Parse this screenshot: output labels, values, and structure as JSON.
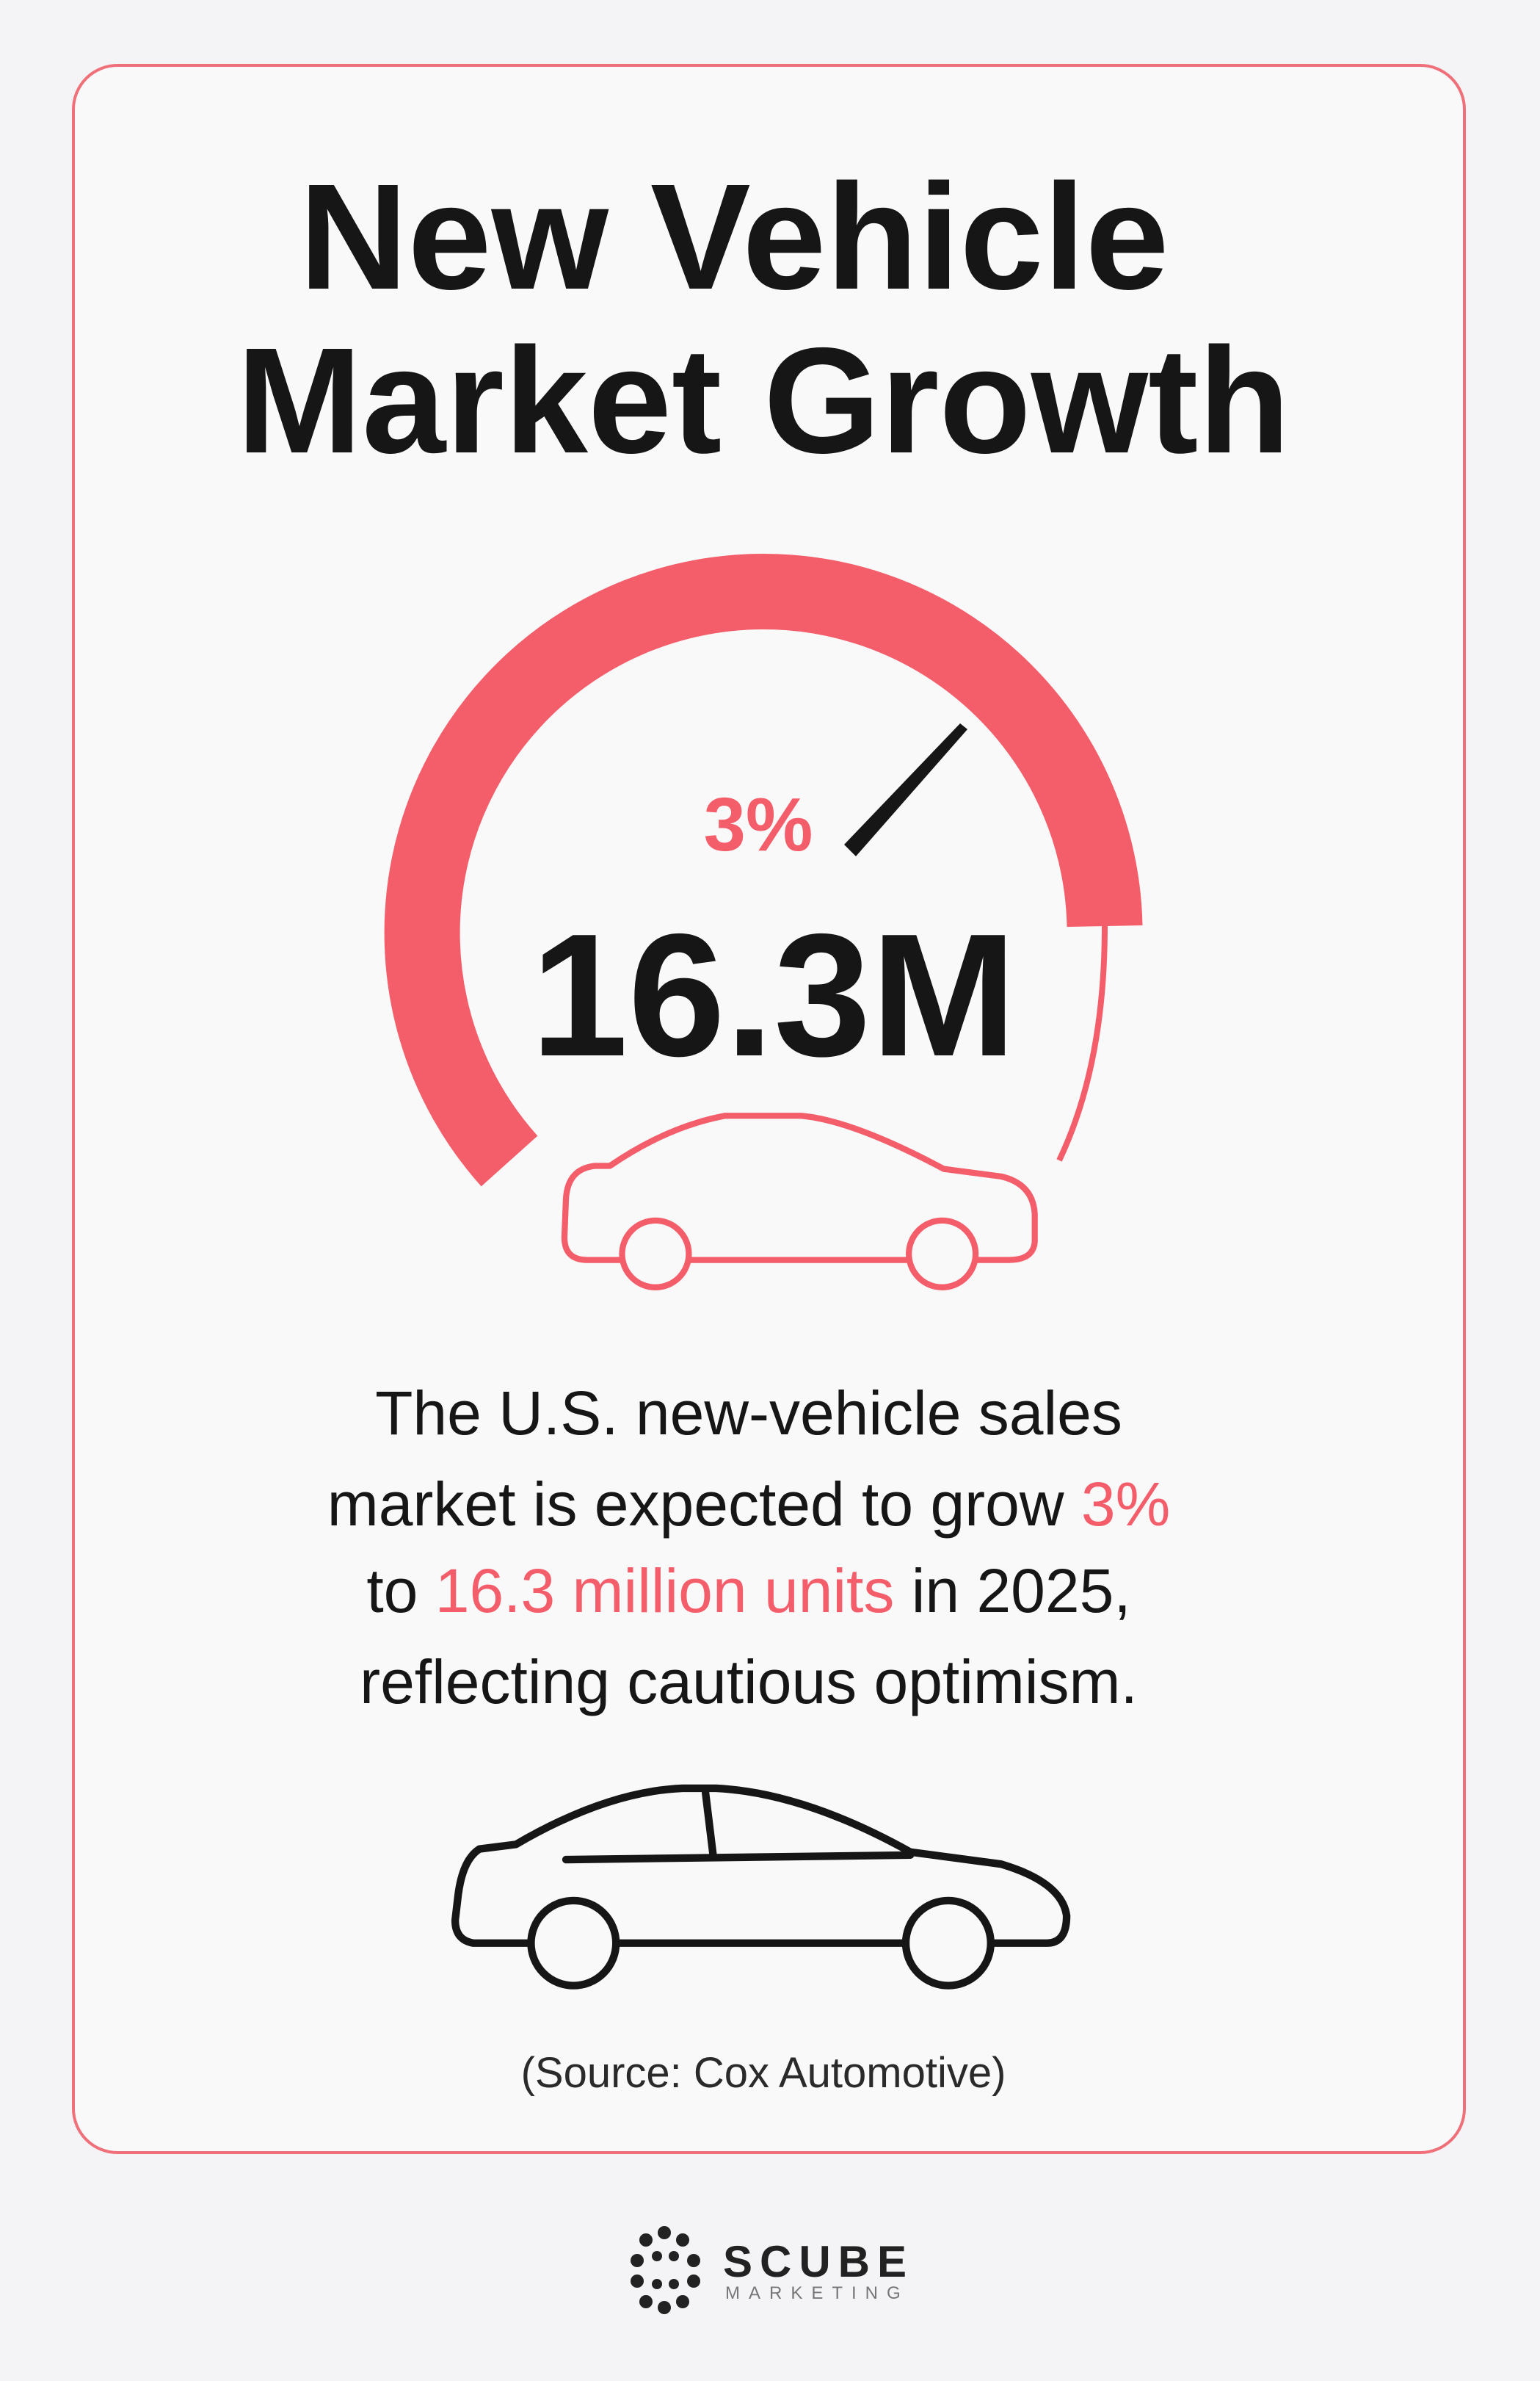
{
  "title_lines": [
    "New Vehicle",
    "Market Growth"
  ],
  "gauge": {
    "growth_label": "3%",
    "value_label": "16.3M"
  },
  "description": {
    "accent_color": "#f45d6a",
    "lines": [
      [
        {
          "text": "The U.S. new-vehicle sales"
        }
      ],
      [
        {
          "text": "market is expected to grow "
        },
        {
          "text": "3%",
          "highlight": true
        }
      ],
      [
        {
          "text": "to "
        },
        {
          "text": "16.3 million units",
          "highlight": true
        },
        {
          "text": " in 2025,"
        }
      ],
      [
        {
          "text": "reflecting cautious optimism."
        }
      ]
    ]
  },
  "source": "(Source: Cox Automotive)",
  "logo": {
    "name": "SCUBE",
    "tagline": "MARKETING"
  }
}
